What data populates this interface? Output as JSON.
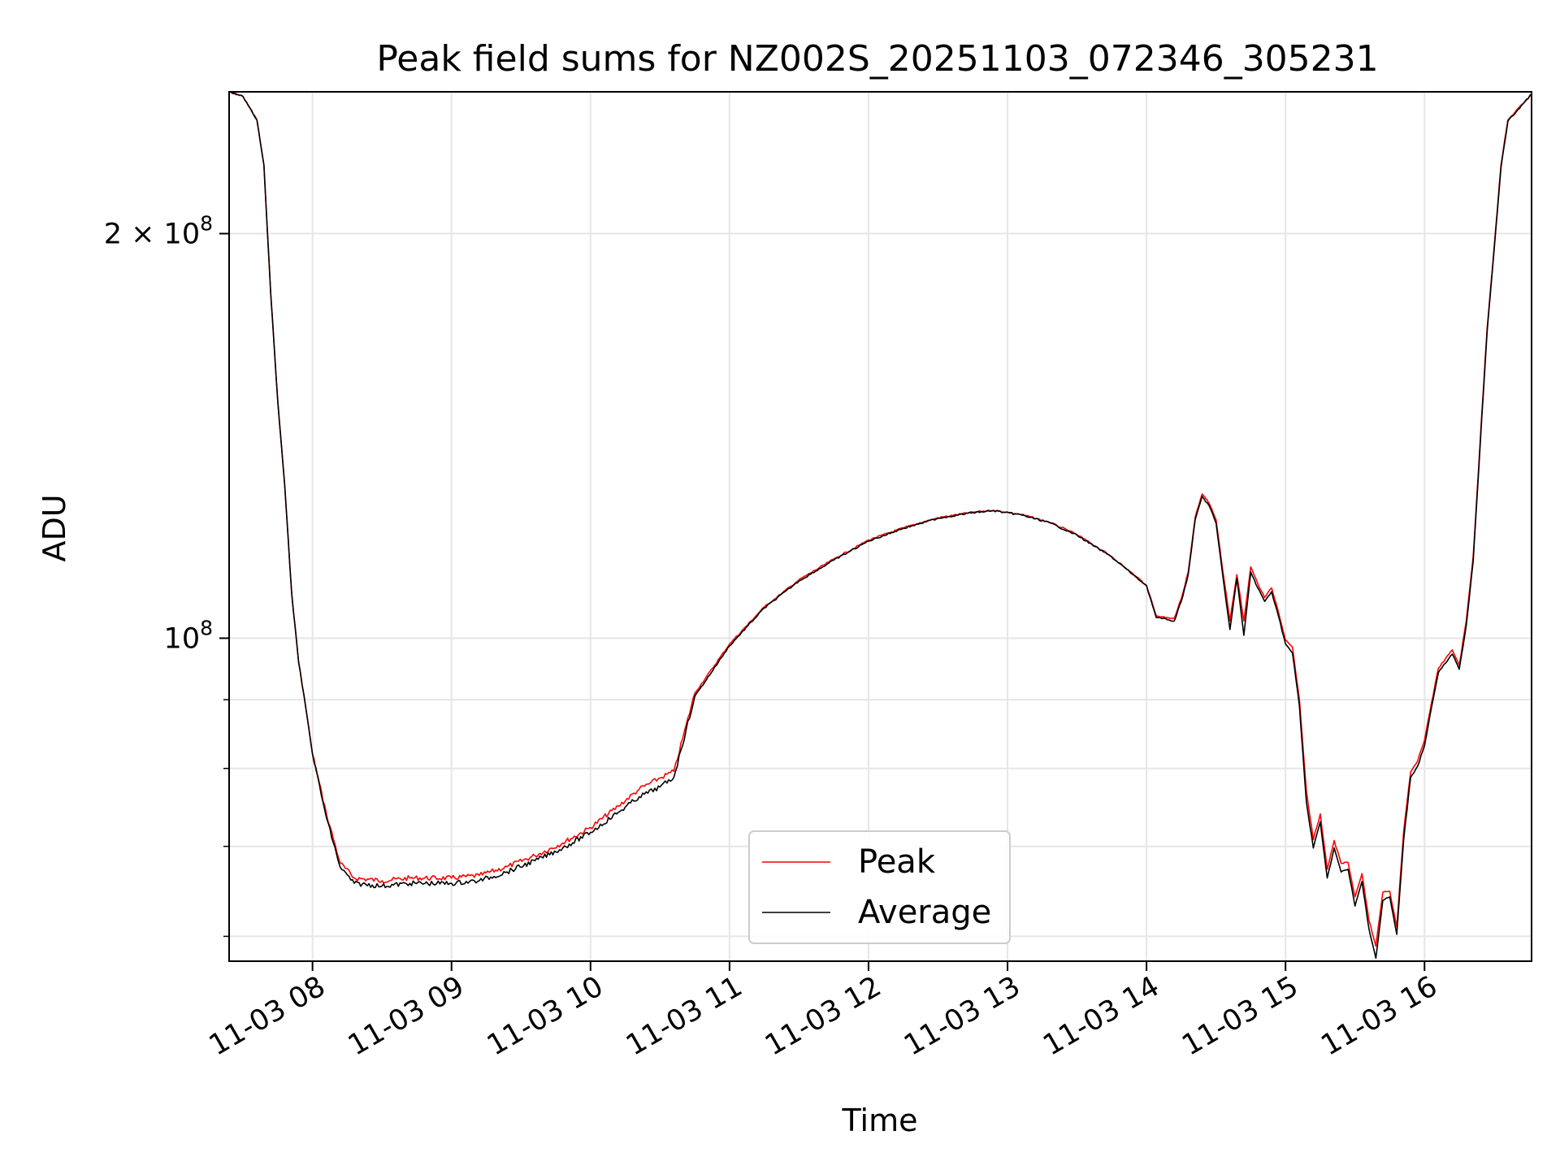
{
  "chart_data": {
    "type": "line",
    "title": "Peak field sums for NZ002S_20251103_072346_305231",
    "xlabel": "Time",
    "ylabel": "ADU",
    "y_scale": "log",
    "ylim": [
      57500000,
      255000000
    ],
    "xlim_hours": [
      7.4,
      16.77
    ],
    "grid": true,
    "legend_position": "lower center",
    "x_ticks": [
      {
        "hour": 8,
        "label": "11-03 08"
      },
      {
        "hour": 9,
        "label": "11-03 09"
      },
      {
        "hour": 10,
        "label": "11-03 10"
      },
      {
        "hour": 11,
        "label": "11-03 11"
      },
      {
        "hour": 12,
        "label": "11-03 12"
      },
      {
        "hour": 13,
        "label": "11-03 13"
      },
      {
        "hour": 14,
        "label": "11-03 14"
      },
      {
        "hour": 15,
        "label": "11-03 15"
      },
      {
        "hour": 16,
        "label": "11-03 16"
      }
    ],
    "y_major_ticks": [
      {
        "value": 100000000,
        "base": "10",
        "exp": "8",
        "coef": ""
      },
      {
        "value": 200000000,
        "base": "10",
        "exp": "8",
        "coef": "2 × "
      }
    ],
    "y_minor_ticks": [
      60000000,
      70000000,
      80000000,
      90000000
    ],
    "x_hours": [
      7.4,
      7.5,
      7.6,
      7.65,
      7.7,
      7.75,
      7.8,
      7.85,
      7.9,
      7.95,
      8.0,
      8.1,
      8.2,
      8.3,
      8.5,
      8.7,
      9.0,
      9.2,
      9.4,
      9.6,
      9.8,
      10.0,
      10.2,
      10.35,
      10.5,
      10.6,
      10.75,
      11.0,
      11.25,
      11.5,
      11.75,
      12.0,
      12.25,
      12.5,
      12.75,
      12.9,
      13.1,
      13.3,
      13.5,
      13.75,
      14.0,
      14.07,
      14.15,
      14.2,
      14.25,
      14.3,
      14.35,
      14.4,
      14.45,
      14.5,
      14.55,
      14.6,
      14.65,
      14.7,
      14.75,
      14.8,
      14.85,
      14.9,
      14.95,
      15.0,
      15.05,
      15.1,
      15.15,
      15.2,
      15.25,
      15.3,
      15.35,
      15.4,
      15.45,
      15.5,
      15.55,
      15.6,
      15.65,
      15.7,
      15.75,
      15.8,
      15.85,
      15.9,
      15.95,
      16.0,
      16.05,
      16.1,
      16.15,
      16.2,
      16.25,
      16.3,
      16.35,
      16.4,
      16.45,
      16.5,
      16.55,
      16.6,
      16.77
    ],
    "series": [
      {
        "name": "Peak",
        "color": "#ff0000",
        "values": [
          255000000,
          253000000,
          243000000,
          225000000,
          180000000,
          150000000,
          130000000,
          108000000,
          96000000,
          89000000,
          82000000,
          74000000,
          68000000,
          66300000,
          66000000,
          66300000,
          66300000,
          66600000,
          67600000,
          68900000,
          70400000,
          72300000,
          75000000,
          77200000,
          78700000,
          79600000,
          91000000,
          99000000,
          105500000,
          110500000,
          114500000,
          118300000,
          120800000,
          122900000,
          124100000,
          124500000,
          123600000,
          122000000,
          119400000,
          115000000,
          109500000,
          103900000,
          103600000,
          103500000,
          107000000,
          112000000,
          123000000,
          128000000,
          126000000,
          122500000,
          112000000,
          103000000,
          111500000,
          103000000,
          113000000,
          109800000,
          107200000,
          109000000,
          104500000,
          99700000,
          98500000,
          90000000,
          77000000,
          70800000,
          74000000,
          67300000,
          70700000,
          68000000,
          68100000,
          64200000,
          66800000,
          61700000,
          59000000,
          64700000,
          64800000,
          61000000,
          71800000,
          79500000,
          81000000,
          84000000,
          89500000,
          95000000,
          96500000,
          98000000,
          95500000,
          103000000,
          115000000,
          140000000,
          170000000,
          195000000,
          225000000,
          243000000,
          254000000
        ]
      },
      {
        "name": "Average",
        "color": "#000000",
        "values": [
          255000000,
          253000000,
          243000000,
          225000000,
          180000000,
          150000000,
          130000000,
          108000000,
          96000000,
          89000000,
          82000000,
          73500000,
          67500000,
          65700000,
          65400000,
          65700000,
          65700000,
          66000000,
          67000000,
          68300000,
          69800000,
          71700000,
          74200000,
          76200000,
          77500000,
          78800000,
          90500000,
          98700000,
          105300000,
          110300000,
          114300000,
          118100000,
          120700000,
          122800000,
          124000000,
          124400000,
          123500000,
          121900000,
          119300000,
          114900000,
          109400000,
          103600000,
          103200000,
          103000000,
          106500000,
          111500000,
          122500000,
          127500000,
          125500000,
          121800000,
          111000000,
          101500000,
          110800000,
          100500000,
          112000000,
          109000000,
          106500000,
          108300000,
          103800000,
          99000000,
          97500000,
          89000000,
          75500000,
          69800000,
          73000000,
          66300000,
          69800000,
          67000000,
          67300000,
          63200000,
          65900000,
          60800000,
          57800000,
          63800000,
          64200000,
          60200000,
          70800000,
          78800000,
          80300000,
          83200000,
          88800000,
          94300000,
          95800000,
          97300000,
          94800000,
          102200000,
          114000000,
          139000000,
          169000000,
          194000000,
          224000000,
          242500000,
          254000000
        ]
      }
    ]
  }
}
